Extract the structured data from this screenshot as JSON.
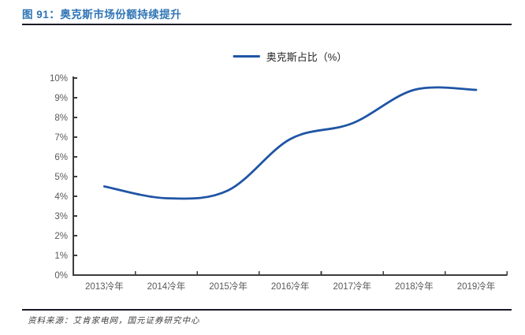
{
  "figure": {
    "title": "图 91：奥克斯市场份额持续提升",
    "source": "资料来源：艾肯家电网，国元证券研究中心"
  },
  "chart_data": {
    "type": "line",
    "smooth": true,
    "title": "奥克斯市场份额持续提升",
    "legend_position": "top-center",
    "grid": false,
    "categories": [
      "2013冷年",
      "2014冷年",
      "2015冷年",
      "2016冷年",
      "2017冷年",
      "2018冷年",
      "2019冷年"
    ],
    "series": [
      {
        "name": "奥克斯占比（%）",
        "values": [
          4.5,
          3.9,
          4.3,
          6.9,
          7.7,
          9.4,
          9.4
        ]
      }
    ],
    "xlabel": "",
    "ylabel": "",
    "ylim": [
      0,
      10
    ],
    "ytick_step": 1,
    "ytick_labels": [
      "0%",
      "1%",
      "2%",
      "3%",
      "4%",
      "5%",
      "6%",
      "7%",
      "8%",
      "9%",
      "10%"
    ]
  },
  "colors": {
    "title_blue": "#2E74B5",
    "divider": "#1a1a26",
    "axis": "#3c3c3c",
    "tick_label": "#595959",
    "series_blue": "#1F55A5",
    "legend_text": "#262626"
  }
}
